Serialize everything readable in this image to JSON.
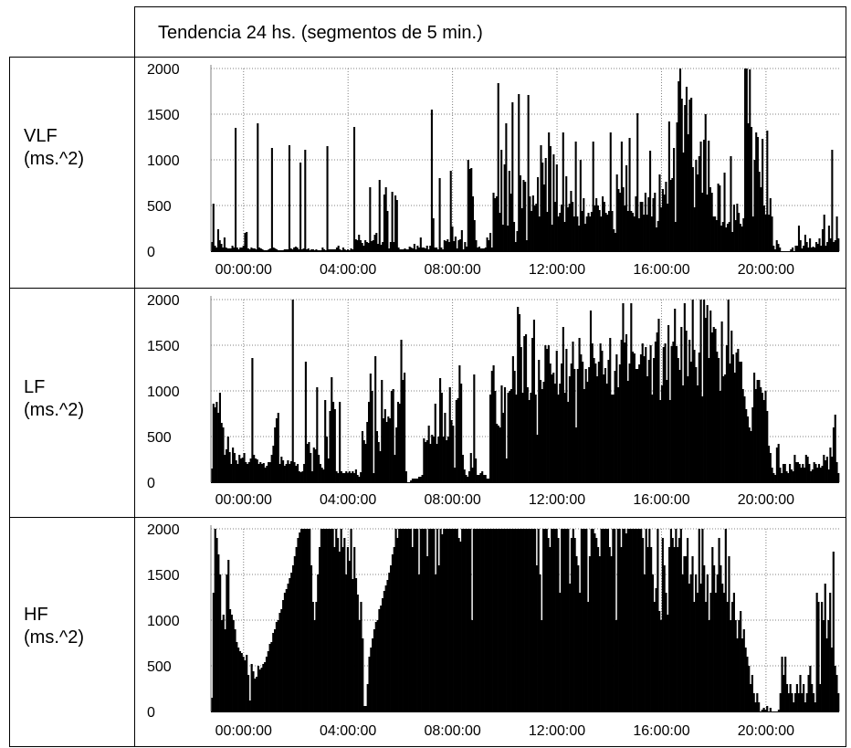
{
  "header": {
    "title": "Tendencia 24 hs. (segmentos de 5 min.)"
  },
  "rows": [
    {
      "label_line1": "VLF",
      "label_line2": "(ms.^2)"
    },
    {
      "label_line1": "LF",
      "label_line2": "(ms.^2)"
    },
    {
      "label_line1": "HF",
      "label_line2": "(ms.^2)"
    }
  ],
  "chart_data": [
    {
      "type": "bar",
      "metric": "VLF",
      "ylabel": "",
      "xlabel": "",
      "ylim": [
        0,
        2000
      ],
      "y_ticks": [
        "0",
        "500",
        "1000",
        "1500",
        "2000"
      ],
      "x_ticks": [
        "00:00:00",
        "04:00:00",
        "08:00:00",
        "12:00:00",
        "16:00:00",
        "20:00:00"
      ],
      "x_tick_hours": [
        0,
        4,
        8,
        12,
        16,
        20
      ],
      "x_start_hour": -1.25,
      "x_end_hour": 22.8,
      "bar_interval_minutes": 5,
      "grid": true,
      "values": [
        100,
        520,
        60,
        40,
        240,
        120,
        80,
        40,
        150,
        40,
        30,
        30,
        30,
        60,
        40,
        1350,
        40,
        20,
        40,
        40,
        60,
        200,
        210,
        30,
        20,
        40,
        30,
        30,
        20,
        1400,
        40,
        30,
        20,
        10,
        10,
        10,
        20,
        30,
        1130,
        40,
        30,
        20,
        10,
        10,
        10,
        10,
        20,
        20,
        20,
        1160,
        30,
        20,
        40,
        50,
        40,
        20,
        970,
        20,
        30,
        1110,
        20,
        30,
        10,
        20,
        20,
        10,
        20,
        10,
        10,
        10,
        40,
        20,
        10,
        1150,
        20,
        20,
        20,
        20,
        20,
        40,
        60,
        20,
        10,
        40,
        20,
        10,
        20,
        10,
        30,
        20,
        1360,
        130,
        120,
        180,
        120,
        90,
        60,
        120,
        100,
        90,
        700,
        110,
        120,
        180,
        200,
        80,
        780,
        70,
        100,
        620,
        700,
        440,
        30,
        100,
        650,
        100,
        610,
        560,
        40,
        20,
        20,
        20,
        30,
        20,
        20,
        50,
        40,
        30,
        80,
        20,
        60,
        40,
        150,
        40,
        40,
        30,
        60,
        20,
        60,
        1550,
        360,
        40,
        40,
        20,
        800,
        40,
        20,
        120,
        110,
        130,
        100,
        880,
        270,
        110,
        160,
        30,
        120,
        130,
        230,
        20,
        100,
        50,
        1000,
        900,
        910,
        600,
        340,
        120,
        40,
        50,
        30,
        30,
        30,
        40,
        150,
        120,
        200,
        40,
        640,
        580,
        600,
        1840,
        420,
        1110,
        290,
        950,
        1400,
        280,
        880,
        630,
        1630,
        320,
        100,
        220,
        1720,
        830,
        470,
        780,
        760,
        120,
        1710,
        600,
        440,
        610,
        500,
        520,
        810,
        380,
        1160,
        970,
        730,
        1020,
        430,
        1300,
        1150,
        290,
        1060,
        540,
        950,
        380,
        420,
        510,
        1300,
        320,
        820,
        480,
        520,
        660,
        540,
        380,
        1200,
        380,
        280,
        1000,
        440,
        580,
        300,
        380,
        420,
        380,
        430,
        1200,
        500,
        580,
        500,
        450,
        380,
        600,
        540,
        420,
        400,
        440,
        1300,
        440,
        240,
        200,
        840,
        680,
        640,
        1200,
        700,
        500,
        940,
        440,
        1240,
        440,
        420,
        380,
        600,
        1510,
        360,
        540,
        540,
        400,
        640,
        400,
        590,
        1100,
        380,
        580,
        640,
        260,
        330,
        840,
        480,
        680,
        620,
        760,
        520,
        1420,
        780,
        800,
        1130,
        320,
        1410,
        1860,
        2000,
        1670,
        1080,
        1600,
        1800,
        1280,
        1660,
        1680,
        920,
        480,
        1000,
        840,
        1040,
        1200,
        640,
        1220,
        1500,
        620,
        1210,
        700,
        640,
        380,
        380,
        340,
        740,
        720,
        280,
        320,
        860,
        260,
        300,
        320,
        1040,
        210,
        510,
        340,
        520,
        420,
        300,
        270,
        360,
        2000,
        2000,
        1400,
        1990,
        1360,
        380,
        1000,
        1300,
        1250,
        870,
        700,
        1230,
        500,
        400,
        1320,
        400,
        580,
        380,
        60,
        20,
        120,
        80,
        40,
        0,
        0,
        0,
        0,
        0,
        0,
        20,
        40,
        0,
        60,
        60,
        280,
        120,
        30,
        60,
        180,
        100,
        40,
        140,
        40,
        50,
        40,
        100,
        80,
        140,
        60,
        240,
        400,
        60,
        100,
        280,
        140,
        1110,
        100,
        120,
        380,
        140
      ],
      "mean": 400
    },
    {
      "type": "bar",
      "metric": "LF",
      "ylabel": "",
      "xlabel": "",
      "ylim": [
        0,
        2000
      ],
      "y_ticks": [
        "0",
        "500",
        "1000",
        "1500",
        "2000"
      ],
      "x_ticks": [
        "00:00:00",
        "04:00:00",
        "08:00:00",
        "12:00:00",
        "16:00:00",
        "20:00:00"
      ],
      "x_tick_hours": [
        0,
        4,
        8,
        12,
        16,
        20
      ],
      "x_start_hour": -1.25,
      "x_end_hour": 22.8,
      "bar_interval_minutes": 5,
      "grid": true,
      "values": [
        150,
        860,
        820,
        880,
        760,
        980,
        650,
        600,
        300,
        360,
        500,
        330,
        200,
        380,
        320,
        240,
        200,
        300,
        260,
        270,
        320,
        220,
        200,
        220,
        260,
        1360,
        300,
        260,
        250,
        200,
        220,
        200,
        210,
        160,
        180,
        220,
        220,
        300,
        400,
        600,
        700,
        760,
        200,
        280,
        240,
        180,
        200,
        240,
        200,
        230,
        2000,
        220,
        180,
        200,
        120,
        110,
        120,
        200,
        1320,
        420,
        440,
        320,
        120,
        380,
        360,
        1040,
        300,
        200,
        160,
        140,
        900,
        500,
        260,
        780,
        1150,
        880,
        800,
        120,
        100,
        880,
        120,
        100,
        100,
        120,
        100,
        120,
        100,
        120,
        100,
        140,
        80,
        60,
        110,
        560,
        460,
        420,
        660,
        880,
        1190,
        1000,
        100,
        1380,
        560,
        440,
        340,
        1120,
        700,
        800,
        660,
        720,
        700,
        1000,
        1020,
        300,
        600,
        880,
        860,
        1560,
        1120,
        1200,
        120,
        0,
        0,
        20,
        40,
        40,
        40,
        40,
        60,
        60,
        80,
        480,
        440,
        460,
        620,
        420,
        520,
        500,
        860,
        420,
        500,
        1140,
        980,
        500,
        760,
        460,
        500,
        1040,
        680,
        620,
        160,
        900,
        920,
        1280,
        1080,
        300,
        140,
        80,
        60,
        120,
        320,
        160,
        1180,
        260,
        80,
        80,
        100,
        120,
        80,
        80,
        40,
        40,
        960,
        1220,
        1280,
        1000,
        640,
        620,
        600,
        1060,
        760,
        1040,
        260,
        980,
        1000,
        1020,
        1380,
        1220,
        960,
        1920,
        1840,
        1480,
        980,
        1600,
        1620,
        1040,
        900,
        980,
        1580,
        1780,
        960,
        520,
        1340,
        1120,
        1020,
        1100,
        1500,
        1460,
        1500,
        1300,
        1180,
        1200,
        1080,
        1440,
        960,
        1080,
        1300,
        1700,
        980,
        1460,
        880,
        1160,
        1300,
        1540,
        1240,
        600,
        1240,
        1580,
        1400,
        1320,
        1020,
        1240,
        1100,
        1260,
        1880,
        1520,
        1360,
        1300,
        1160,
        1320,
        1520,
        1440,
        1180,
        1250,
        1080,
        1340,
        1580,
        960,
        960,
        1220,
        1400,
        1040,
        1290,
        1560,
        1960,
        1530,
        1620,
        1110,
        1300,
        1960,
        1430,
        1410,
        1240,
        1240,
        1290,
        1400,
        1520,
        1380,
        1480,
        1160,
        1340,
        1500,
        960,
        1360,
        1540,
        1640,
        1790,
        900,
        1060,
        1480,
        1520,
        1120,
        1720,
        900,
        1490,
        1540,
        1900,
        1490,
        1360,
        1230,
        1700,
        1060,
        1960,
        1660,
        1160,
        1560,
        1320,
        2000,
        1450,
        1260,
        1060,
        1420,
        2000,
        940,
        2000,
        1800,
        1940,
        1360,
        1880,
        1640,
        1700,
        1680,
        1430,
        1360,
        1000,
        1760,
        1160,
        1180,
        1500,
        2000,
        1300,
        1660,
        1400,
        1200,
        1420,
        1460,
        1320,
        1320,
        1020,
        940,
        800,
        720,
        600,
        560,
        820,
        1200,
        1020,
        1120,
        1120,
        1040,
        980,
        900,
        1000,
        780,
        400,
        320,
        160,
        100,
        80,
        380,
        420,
        160,
        100,
        200,
        200,
        120,
        100,
        200,
        140,
        120,
        300,
        220,
        220,
        200,
        160,
        200,
        160,
        300,
        280,
        200,
        120,
        140,
        220,
        200,
        160,
        200,
        160,
        180,
        300,
        240,
        280,
        140,
        380,
        280,
        600,
        740,
        220,
        100
      ],
      "mean": 900
    },
    {
      "type": "bar",
      "metric": "HF",
      "ylabel": "",
      "xlabel": "",
      "ylim": [
        0,
        2000
      ],
      "y_ticks": [
        "0",
        "500",
        "1000",
        "1500",
        "2000"
      ],
      "x_ticks": [
        "00:00:00",
        "04:00:00",
        "08:00:00",
        "12:00:00",
        "16:00:00",
        "20:00:00"
      ],
      "x_tick_hours": [
        0,
        4,
        8,
        12,
        16,
        20
      ],
      "x_start_hour": -1.25,
      "x_end_hour": 22.8,
      "bar_interval_minutes": 5,
      "grid": true,
      "values": [
        150,
        1300,
        2000,
        1900,
        1720,
        1500,
        1000,
        1060,
        900,
        1500,
        1660,
        1120,
        1060,
        1000,
        900,
        760,
        700,
        660,
        640,
        600,
        560,
        620,
        400,
        120,
        520,
        440,
        360,
        380,
        500,
        460,
        480,
        520,
        540,
        600,
        660,
        740,
        760,
        860,
        900,
        980,
        1000,
        1080,
        1120,
        1220,
        1300,
        1340,
        1400,
        1460,
        1520,
        1600,
        1700,
        1800,
        1900,
        1960,
        2000,
        2000,
        2000,
        2000,
        2000,
        2000,
        1600,
        1200,
        1000,
        1200,
        1500,
        1800,
        2000,
        2000,
        2000,
        2000,
        2000,
        2000,
        2000,
        2000,
        1800,
        2000,
        1900,
        1750,
        2000,
        1800,
        1900,
        1500,
        1800,
        1650,
        2000,
        1450,
        1800,
        1460,
        1280,
        1000,
        1200,
        800,
        60,
        60,
        300,
        600,
        700,
        800,
        900,
        980,
        1000,
        1120,
        1160,
        1240,
        1320,
        1380,
        1440,
        1520,
        1600,
        1720,
        1800,
        2000,
        1900,
        2000,
        2000,
        2000,
        2000,
        2000,
        2000,
        2000,
        2000,
        1800,
        2000,
        2000,
        2000,
        1500,
        2000,
        2000,
        2000,
        2000,
        1700,
        2000,
        2000,
        2000,
        2000,
        1500,
        2000,
        1600,
        2000,
        1940,
        2000,
        2000,
        2000,
        2000,
        2000,
        2000,
        2000,
        2000,
        2000,
        1900,
        1860,
        2000,
        2000,
        2000,
        2000,
        2000,
        2000,
        1000,
        2000,
        2000,
        2000,
        2000,
        2000,
        2000,
        2000,
        2000,
        2000,
        2000,
        2000,
        2000,
        2000,
        2000,
        2000,
        2000,
        2000,
        2000,
        2000,
        2000,
        2000,
        2000,
        2000,
        2000,
        2000,
        2000,
        2000,
        2000,
        2000,
        2000,
        2000,
        2000,
        2000,
        2000,
        2000,
        2000,
        2000,
        2000,
        1600,
        2000,
        1500,
        1000,
        2000,
        2000,
        2000,
        1900,
        1800,
        2000,
        2000,
        2000,
        2000,
        1900,
        1300,
        2000,
        2000,
        2000,
        2000,
        2000,
        1400,
        1900,
        2000,
        1900,
        1700,
        1600,
        1300,
        2000,
        2000,
        2000,
        2000,
        1200,
        1700,
        2000,
        2000,
        1950,
        1900,
        1800,
        1700,
        2000,
        2000,
        2000,
        2000,
        2000,
        1800,
        1700,
        2000,
        2000,
        1000,
        2000,
        2000,
        1800,
        2000,
        2000,
        1950,
        2000,
        2000,
        2000,
        2000,
        2000,
        2000,
        2000,
        2000,
        2000,
        1900,
        1500,
        2000,
        1800,
        2000,
        1800,
        1500,
        1200,
        1350,
        2000,
        1100,
        1000,
        1900,
        1600,
        1300,
        1060,
        1800,
        2000,
        1900,
        1800,
        2000,
        1800,
        1900,
        2000,
        1500,
        1700,
        1700,
        1900,
        1400,
        1500,
        1700,
        1200,
        1500,
        1300,
        2000,
        1400,
        2000,
        1600,
        1200,
        1500,
        1000,
        1300,
        1800,
        1600,
        1300,
        1500,
        1900,
        1600,
        1400,
        1300,
        2000,
        1200,
        1700,
        1000,
        1200,
        1300,
        1000,
        800,
        1000,
        1100,
        800,
        900,
        700,
        600,
        500,
        300,
        400,
        200,
        100,
        200,
        100,
        0,
        20,
        40,
        20,
        60,
        0,
        40,
        0,
        0,
        0,
        0,
        20,
        200,
        600,
        400,
        600,
        300,
        200,
        300,
        200,
        100,
        200,
        300,
        200,
        400,
        200,
        300,
        100,
        200,
        400,
        500,
        300,
        200,
        100,
        1300,
        1200,
        300,
        1200,
        1000,
        1400,
        800,
        1000,
        1300,
        700,
        1750,
        500,
        400,
        200
      ],
      "mean": 1500
    }
  ]
}
